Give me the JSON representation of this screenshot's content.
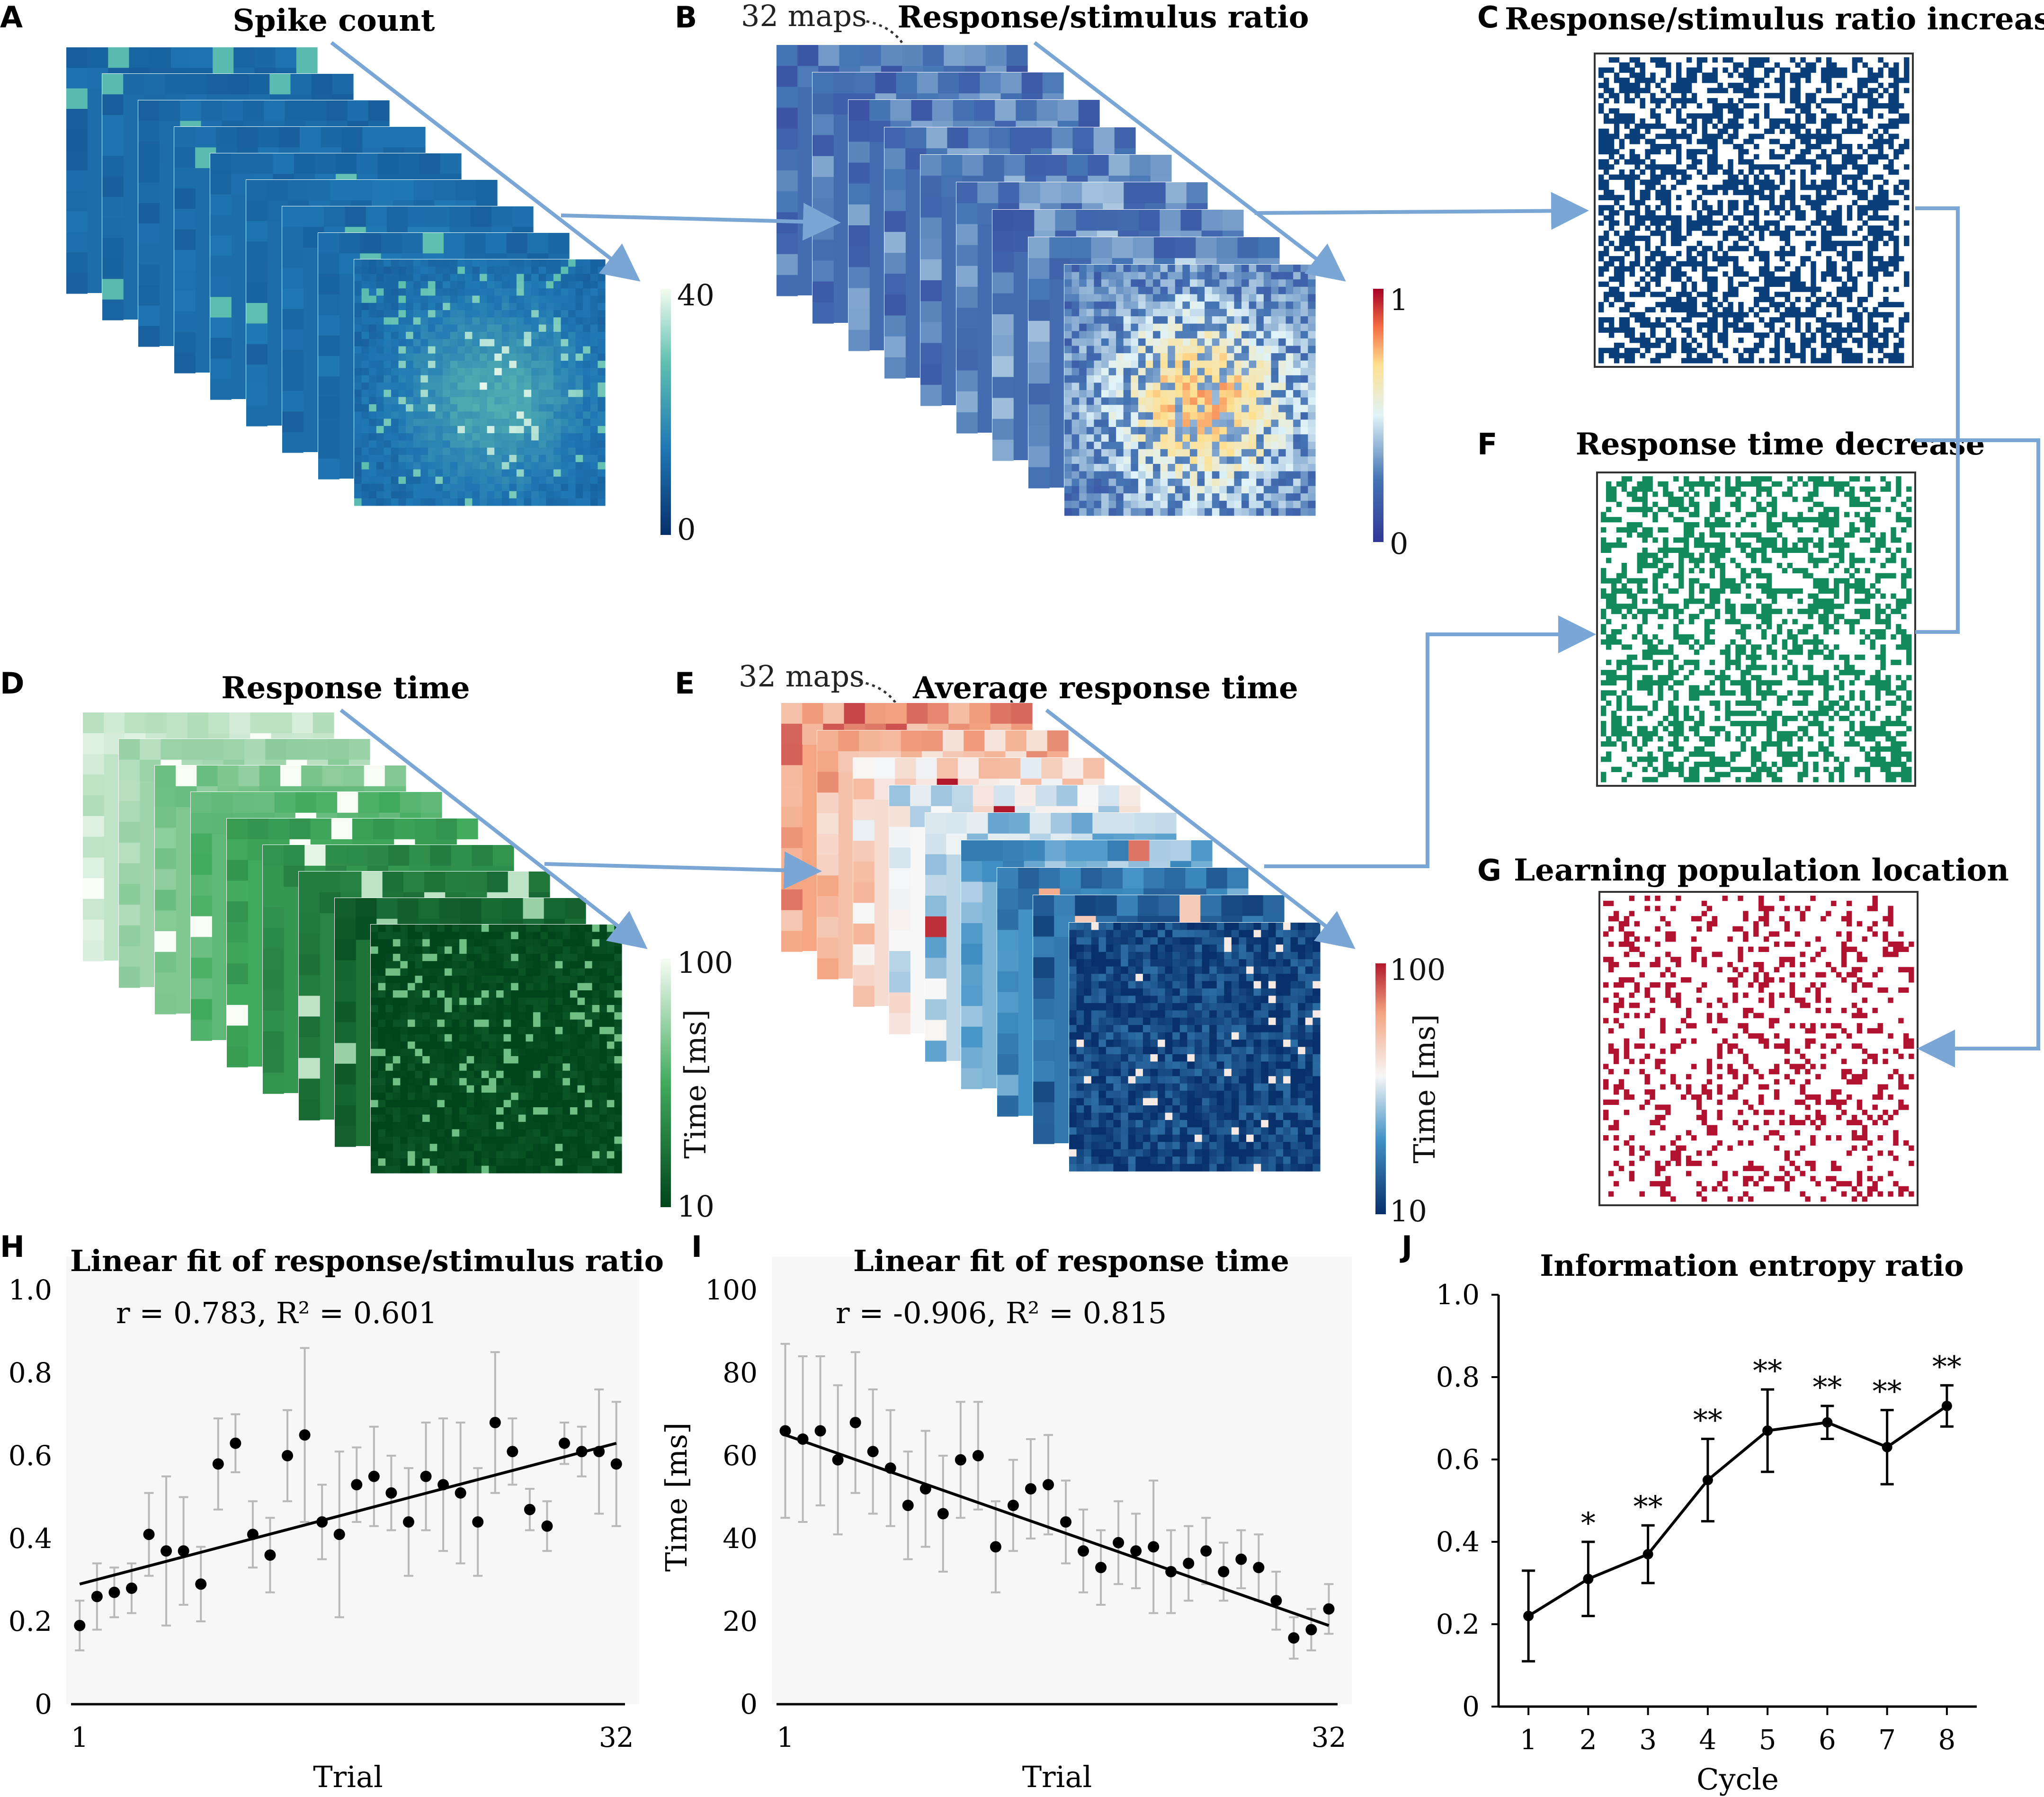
{
  "colors": {
    "arrow": "#7aa6d6",
    "blue_dark": "#0b3f7a",
    "green": "#138a5b",
    "red": "#b0122f",
    "point": "#000000",
    "errbar": "#b8b8b8"
  },
  "panels": {
    "A": {
      "letter": "A",
      "title": "Spike count",
      "cbar_max": "40",
      "cbar_min": "0"
    },
    "B": {
      "letter": "B",
      "title": "Response/stimulus ratio",
      "note": "32 maps",
      "cbar_max": "1",
      "cbar_min": "0"
    },
    "C": {
      "letter": "C",
      "title": "Response/stimulus ratio increase"
    },
    "D": {
      "letter": "D",
      "title": "Response time",
      "cbar_max": "100",
      "cbar_min": "10",
      "cbar_label": "Time [ms]"
    },
    "E": {
      "letter": "E",
      "title": "Average response time",
      "note": "32 maps",
      "cbar_max": "100",
      "cbar_min": "10",
      "cbar_label": "Time [ms]"
    },
    "F": {
      "letter": "F",
      "title": "Response time decrease"
    },
    "G": {
      "letter": "G",
      "title": "Learning population location"
    },
    "H": {
      "letter": "H"
    },
    "I": {
      "letter": "I"
    },
    "J": {
      "letter": "J"
    }
  },
  "chart_data": [
    {
      "id": "H",
      "type": "scatter",
      "title": "Linear fit of response/stimulus ratio",
      "annotation": "r = 0.783, R² = 0.601",
      "xlabel": "Trial",
      "ylabel": "",
      "xlim": [
        0.5,
        32.5
      ],
      "ylim": [
        0,
        1.0
      ],
      "xticks": [
        1,
        32
      ],
      "yticks": [
        0,
        0.2,
        0.4,
        0.6,
        0.8,
        1.0
      ],
      "ytick_labels": [
        "0",
        "0.2",
        "0.4",
        "0.6",
        "0.8",
        "1.0"
      ],
      "x": [
        1,
        2,
        3,
        4,
        5,
        6,
        7,
        8,
        9,
        10,
        11,
        12,
        13,
        14,
        15,
        16,
        17,
        18,
        19,
        20,
        21,
        22,
        23,
        24,
        25,
        26,
        27,
        28,
        29,
        30,
        31,
        32
      ],
      "y": [
        0.19,
        0.26,
        0.27,
        0.28,
        0.41,
        0.37,
        0.37,
        0.29,
        0.58,
        0.63,
        0.41,
        0.36,
        0.6,
        0.65,
        0.44,
        0.41,
        0.53,
        0.55,
        0.51,
        0.44,
        0.55,
        0.53,
        0.51,
        0.44,
        0.68,
        0.61,
        0.47,
        0.43,
        0.63,
        0.61,
        0.61,
        0.58
      ],
      "err": [
        0.06,
        0.08,
        0.06,
        0.06,
        0.1,
        0.18,
        0.13,
        0.09,
        0.11,
        0.07,
        0.08,
        0.09,
        0.11,
        0.21,
        0.09,
        0.2,
        0.09,
        0.12,
        0.09,
        0.13,
        0.13,
        0.16,
        0.17,
        0.13,
        0.17,
        0.08,
        0.05,
        0.06,
        0.05,
        0.06,
        0.15,
        0.15
      ],
      "fit": {
        "x": [
          1,
          32
        ],
        "y": [
          0.29,
          0.63
        ]
      }
    },
    {
      "id": "I",
      "type": "scatter",
      "title": "Linear fit of response time",
      "annotation": "r = -0.906, R² = 0.815",
      "xlabel": "Trial",
      "ylabel": "Time [ms]",
      "xlim": [
        0.5,
        32.5
      ],
      "ylim": [
        0,
        100
      ],
      "xticks": [
        1,
        32
      ],
      "yticks": [
        0,
        20,
        40,
        60,
        80,
        100
      ],
      "ytick_labels": [
        "0",
        "20",
        "40",
        "60",
        "80",
        "100"
      ],
      "x": [
        1,
        2,
        3,
        4,
        5,
        6,
        7,
        8,
        9,
        10,
        11,
        12,
        13,
        14,
        15,
        16,
        17,
        18,
        19,
        20,
        21,
        22,
        23,
        24,
        25,
        26,
        27,
        28,
        29,
        30,
        31,
        32
      ],
      "y": [
        66,
        64,
        66,
        59,
        68,
        61,
        57,
        48,
        52,
        46,
        59,
        60,
        38,
        48,
        52,
        53,
        44,
        37,
        33,
        39,
        37,
        38,
        32,
        34,
        37,
        32,
        35,
        33,
        25,
        16,
        18,
        23
      ],
      "err": [
        21,
        20,
        18,
        18,
        17,
        15,
        14,
        13,
        14,
        14,
        14,
        13,
        11,
        11,
        12,
        12,
        10,
        10,
        9,
        10,
        9,
        16,
        10,
        9,
        8,
        7,
        7,
        8,
        7,
        5,
        5,
        6
      ],
      "fit": {
        "x": [
          1,
          32
        ],
        "y": [
          65,
          19
        ]
      }
    },
    {
      "id": "J",
      "type": "line",
      "title": "Information entropy ratio",
      "xlabel": "Cycle",
      "ylabel": "",
      "xlim": [
        0.5,
        8.5
      ],
      "ylim": [
        0,
        1.0
      ],
      "xticks": [
        1,
        2,
        3,
        4,
        5,
        6,
        7,
        8
      ],
      "yticks": [
        0,
        0.2,
        0.4,
        0.6,
        0.8,
        1.0
      ],
      "ytick_labels": [
        "0",
        "0.2",
        "0.4",
        "0.6",
        "0.8",
        "1.0"
      ],
      "x": [
        1,
        2,
        3,
        4,
        5,
        6,
        7,
        8
      ],
      "y": [
        0.22,
        0.31,
        0.37,
        0.55,
        0.67,
        0.69,
        0.63,
        0.73
      ],
      "err": [
        0.11,
        0.09,
        0.07,
        0.1,
        0.1,
        0.04,
        0.09,
        0.05
      ],
      "significance": [
        "",
        "*",
        "**",
        "**",
        "**",
        "**",
        "**",
        "**"
      ]
    }
  ]
}
